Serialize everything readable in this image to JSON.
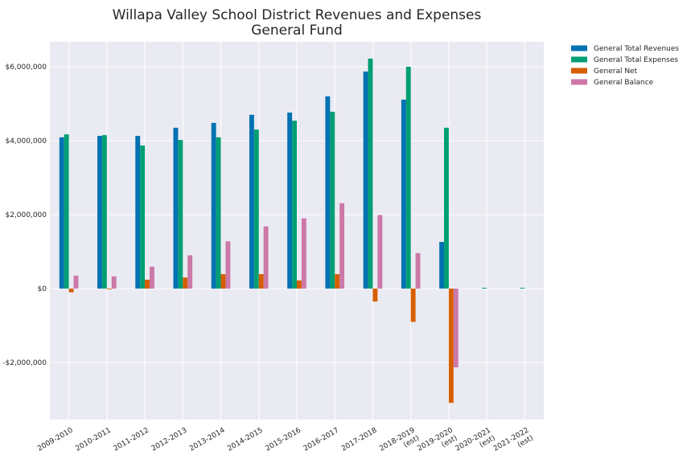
{
  "chart_data": {
    "type": "bar",
    "title": "Willapa Valley School District Revenues and Expenses\nGeneral Fund",
    "categories": [
      "2009-2010",
      "2010-2011",
      "2011-2012",
      "2012-2013",
      "2013-2014",
      "2014-2015",
      "2015-2016",
      "2016-2017",
      "2017-2018",
      "2018-2019\n(est)",
      "2019-2020\n(est)",
      "2020-2021\n(est)",
      "2021-2022\n(est)"
    ],
    "series": [
      {
        "name": "General Total Revenues",
        "color": "#0072b2",
        "values": [
          4090000,
          4130000,
          4130000,
          4350000,
          4480000,
          4700000,
          4760000,
          5200000,
          5870000,
          5110000,
          1260000,
          0,
          0
        ]
      },
      {
        "name": "General Total Expenses",
        "color": "#009e73",
        "values": [
          4170000,
          4150000,
          3870000,
          4020000,
          4090000,
          4300000,
          4540000,
          4780000,
          6220000,
          6000000,
          4350000,
          20000,
          20000
        ]
      },
      {
        "name": "General Net",
        "color": "#d55e00",
        "values": [
          -100000,
          -20000,
          240000,
          300000,
          390000,
          390000,
          220000,
          390000,
          -350000,
          -900000,
          -3090000,
          0,
          0
        ]
      },
      {
        "name": "General Balance",
        "color": "#cc79a7",
        "values": [
          350000,
          330000,
          590000,
          900000,
          1280000,
          1680000,
          1900000,
          2310000,
          1990000,
          960000,
          -2130000,
          0,
          0
        ]
      }
    ],
    "ylim": [
      -3543000,
      6674000
    ],
    "yticks": [
      {
        "value": -2000000,
        "label": "-$2,000,000"
      },
      {
        "value": 0,
        "label": "$0"
      },
      {
        "value": 2000000,
        "label": "$2,000,000"
      },
      {
        "value": 4000000,
        "label": "$4,000,000"
      },
      {
        "value": 6000000,
        "label": "$6,000,000"
      }
    ],
    "grid": true,
    "legend": "outside upper right"
  }
}
